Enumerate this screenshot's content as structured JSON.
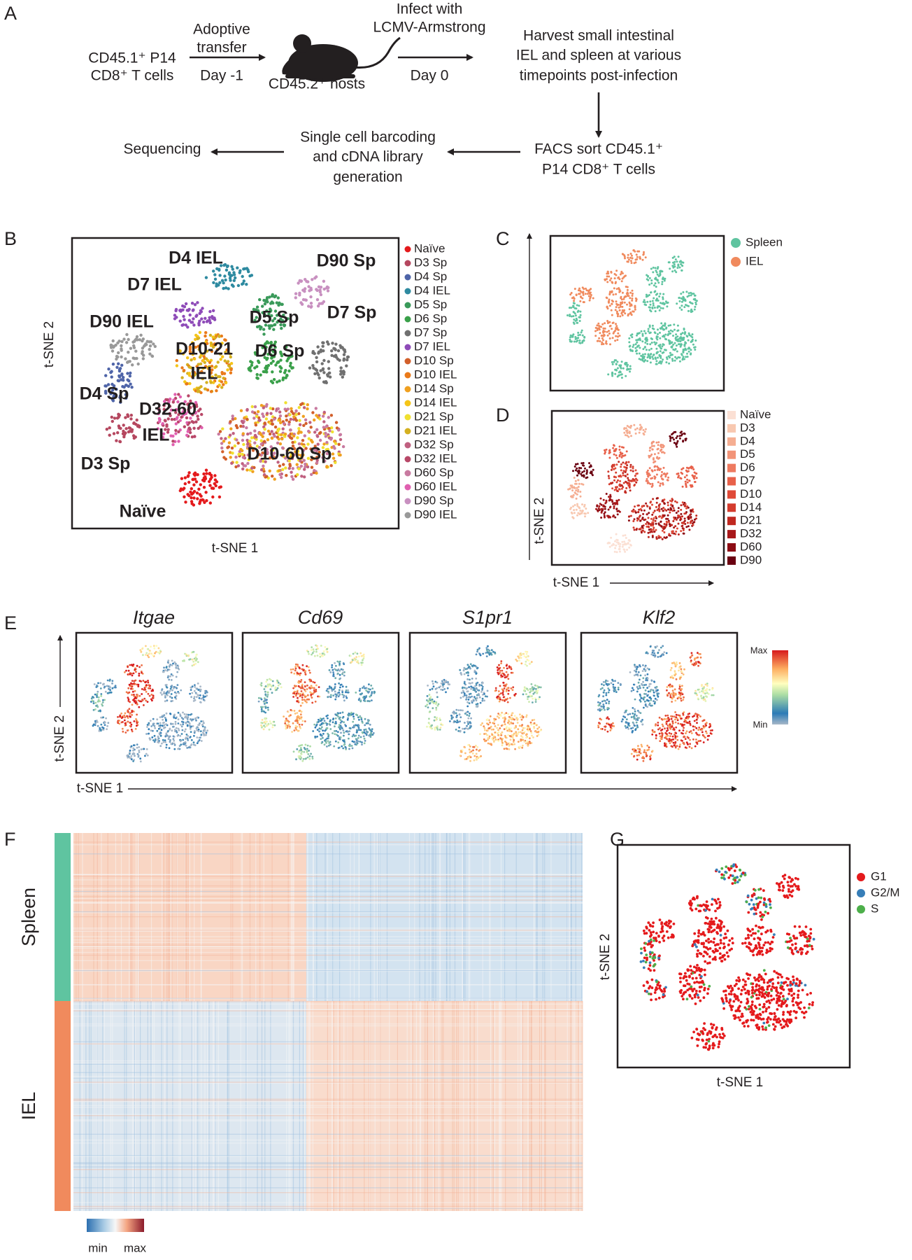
{
  "panel_a": {
    "label": "A",
    "donor_lines": [
      "CD45.1⁺ P14",
      "CD8⁺ T cells"
    ],
    "transfer_lines": [
      "Adoptive",
      "transfer"
    ],
    "transfer_day": "Day -1",
    "host": "CD45.2⁺ hosts",
    "infect_lines": [
      "Infect with",
      "LCMV-Armstrong"
    ],
    "infect_day": "Day 0",
    "harvest_lines": [
      "Harvest small intestinal",
      "IEL and spleen at various",
      "timepoints post-infection"
    ],
    "sort_lines": [
      "FACS sort CD45.1⁺",
      "P14 CD8⁺ T cells"
    ],
    "barcoding_lines": [
      "Single cell barcoding",
      "and cDNA library",
      "generation"
    ],
    "sequencing": "Sequencing"
  },
  "panel_b": {
    "label": "B",
    "clusters": [
      "D4 IEL",
      "D90 Sp",
      "D7 IEL",
      "D5 Sp",
      "D7 Sp",
      "D90 IEL",
      "D10-21",
      "IEL",
      "D6 Sp",
      "D4 Sp",
      "D32-60",
      "IEL",
      "D3 Sp",
      "D10-60 Sp",
      "Naïve"
    ],
    "legend": [
      {
        "name": "Naïve",
        "color": "#e41a1c"
      },
      {
        "name": "D3 Sp",
        "color": "#b5475f"
      },
      {
        "name": "D4 Sp",
        "color": "#4e64a8"
      },
      {
        "name": "D4 IEL",
        "color": "#2e8aa0"
      },
      {
        "name": "D5 Sp",
        "color": "#3a9a5a"
      },
      {
        "name": "D6 Sp",
        "color": "#3aa04a"
      },
      {
        "name": "D7 Sp",
        "color": "#707070"
      },
      {
        "name": "D7 IEL",
        "color": "#8e4bb8"
      },
      {
        "name": "D10 Sp",
        "color": "#d25f2a"
      },
      {
        "name": "D10 IEL",
        "color": "#ea7a1a"
      },
      {
        "name": "D14 Sp",
        "color": "#f0a020"
      },
      {
        "name": "D14 IEL",
        "color": "#f5c518"
      },
      {
        "name": "D21 Sp",
        "color": "#f0e030"
      },
      {
        "name": "D21 IEL",
        "color": "#d4b020"
      },
      {
        "name": "D32 Sp",
        "color": "#c06080"
      },
      {
        "name": "D32 IEL",
        "color": "#b84868"
      },
      {
        "name": "D60 Sp",
        "color": "#c87aa0"
      },
      {
        "name": "D60 IEL",
        "color": "#e060b0"
      },
      {
        "name": "D90 Sp",
        "color": "#c890c0"
      },
      {
        "name": "D90 IEL",
        "color": "#999999"
      }
    ],
    "x_label": "t-SNE 1",
    "y_label": "t-SNE 2"
  },
  "panel_c": {
    "label": "C",
    "legend": [
      {
        "name": "Spleen",
        "color": "#5fc4a0"
      },
      {
        "name": "IEL",
        "color": "#f08a5d"
      }
    ]
  },
  "panel_d": {
    "label": "D",
    "legend": [
      {
        "name": "Naïve",
        "color": "#fbe0d4"
      },
      {
        "name": "D3",
        "color": "#f8c8b0"
      },
      {
        "name": "D4",
        "color": "#f5ae92"
      },
      {
        "name": "D5",
        "color": "#f29478"
      },
      {
        "name": "D6",
        "color": "#ee7a60"
      },
      {
        "name": "D7",
        "color": "#e8614a"
      },
      {
        "name": "D10",
        "color": "#e04a38"
      },
      {
        "name": "D14",
        "color": "#d43c2e"
      },
      {
        "name": "D21",
        "color": "#c02820"
      },
      {
        "name": "D32",
        "color": "#a8181a"
      },
      {
        "name": "D60",
        "color": "#8c0c14"
      },
      {
        "name": "D90",
        "color": "#6a0010"
      }
    ],
    "x_label": "t-SNE 1",
    "y_label": "t-SNE 2"
  },
  "panel_e": {
    "label": "E",
    "genes": [
      "Itgae",
      "Cd69",
      "S1pr1",
      "Klf2"
    ],
    "colorbar_max": "Max",
    "colorbar_min": "Min",
    "x_label": "t-SNE 1",
    "y_label": "t-SNE 2"
  },
  "panel_f": {
    "label": "F",
    "rows": [
      {
        "name": "Spleen",
        "color": "#5fc4a0"
      },
      {
        "name": "IEL",
        "color": "#f08a5d"
      }
    ],
    "colorbar_min": "min",
    "colorbar_max": "max"
  },
  "panel_g": {
    "label": "G",
    "legend": [
      {
        "name": "G1",
        "color": "#e41a1c"
      },
      {
        "name": "G2/M",
        "color": "#377eb8"
      },
      {
        "name": "S",
        "color": "#4daf4a"
      }
    ],
    "x_label": "t-SNE 1",
    "y_label": "t-SNE 2"
  }
}
